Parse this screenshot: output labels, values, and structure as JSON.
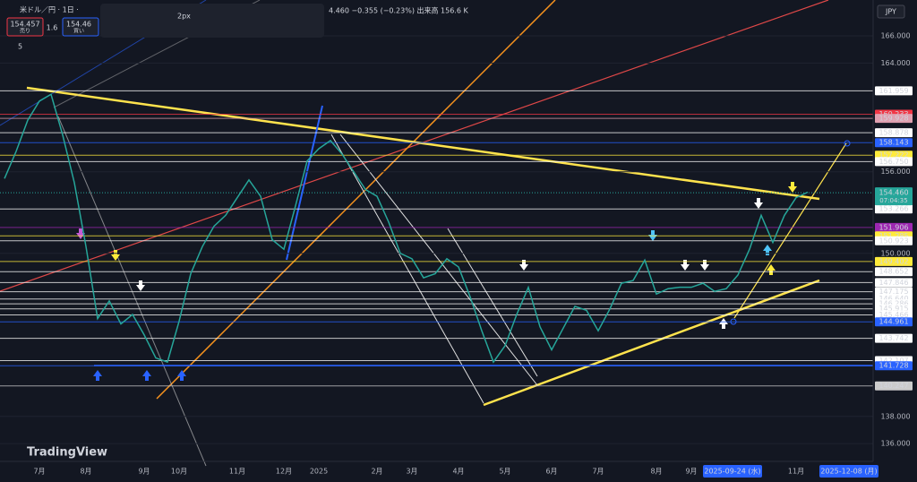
{
  "header": {
    "symbol": "米ドル／円 · 1日 ·",
    "quote": "4.460 −0.355 (−0.23%) 出来高 156.6 K",
    "sell_price": "154.457",
    "sell_label": "売り",
    "spread": "1.6",
    "buy_price": "154.46",
    "buy_label": "買い",
    "indicator": "5",
    "stroke_width": "2px",
    "currency": "JPY",
    "logo": "TradingView"
  },
  "chart_data": {
    "type": "line",
    "color": "#26a69a",
    "categories": [
      null,
      null,
      null,
      "7月",
      null,
      null,
      null,
      "8月",
      null,
      null,
      null,
      null,
      "9月",
      null,
      null,
      "10月",
      null,
      null,
      null,
      null,
      "11月",
      null,
      null,
      null,
      "12月",
      null,
      null,
      "2025",
      null,
      null,
      null,
      null,
      "2月",
      null,
      null,
      "3月",
      null,
      null,
      null,
      "4月",
      null,
      null,
      null,
      "5月",
      null,
      null,
      null,
      "6月",
      null,
      null,
      null,
      "7月",
      null,
      null,
      null,
      null,
      "8月",
      null,
      null,
      "9月",
      null,
      null,
      null,
      null,
      null,
      null,
      null,
      null,
      "11月",
      null
    ],
    "values": [
      155.5,
      157.5,
      159.8,
      161.2,
      161.7,
      158.7,
      155.2,
      150.5,
      145.2,
      146.5,
      144.8,
      145.5,
      144.0,
      142.3,
      142.0,
      145.0,
      148.5,
      150.5,
      152.0,
      152.8,
      154.1,
      155.4,
      154.2,
      151.0,
      150.3,
      153.5,
      156.8,
      157.7,
      158.3,
      157.3,
      156.0,
      154.7,
      154.2,
      152.3,
      150.0,
      149.6,
      148.2,
      148.5,
      149.6,
      149.0,
      146.8,
      144.3,
      142.0,
      143.2,
      145.5,
      147.5,
      144.6,
      142.9,
      144.5,
      146.1,
      145.8,
      144.3,
      145.9,
      147.8,
      148.0,
      149.5,
      147.0,
      147.4,
      147.5,
      147.5,
      147.8,
      147.2,
      147.4,
      148.4,
      150.3,
      152.8,
      150.8,
      152.8,
      154.1,
      154.5
    ],
    "ylim": [
      134.69,
      168.64
    ],
    "yticks": [
      {
        "value": 136,
        "label": "136.000"
      },
      {
        "value": 138,
        "label": "138.000"
      },
      {
        "value": 150,
        "label": "150.000"
      },
      {
        "value": 156,
        "label": "156.000"
      },
      {
        "value": 164,
        "label": "164.000"
      },
      {
        "value": 166,
        "label": "166.000"
      }
    ],
    "price_levels": [
      {
        "value": 161.959,
        "label": "161.959",
        "color": "#ffffff"
      },
      {
        "value": 160.233,
        "label": "160.233",
        "color": "#f23645"
      },
      {
        "value": 159.928,
        "label": "159.928",
        "color": "#e0a0b0"
      },
      {
        "value": 158.878,
        "label": "158.878",
        "color": "#ffffff"
      },
      {
        "value": 158.143,
        "label": "158.143",
        "color": "#2962ff"
      },
      {
        "value": 157.222,
        "label": "157.222",
        "color": "#ffeb3b"
      },
      {
        "value": 156.75,
        "label": "156.750",
        "color": "#ffffff"
      },
      {
        "value": 153.266,
        "label": "153.266",
        "color": "#ffffff"
      },
      {
        "value": 151.906,
        "label": "151.906",
        "color": "#9c27b0"
      },
      {
        "value": 151.285,
        "label": "151.285",
        "color": "#ffeb3b"
      },
      {
        "value": 150.923,
        "label": "150.923",
        "color": "#ffffff"
      },
      {
        "value": 149.402,
        "label": "149.402",
        "color": "#ffeb3b"
      },
      {
        "value": 148.652,
        "label": "148.652",
        "color": "#ffffff"
      },
      {
        "value": 147.846,
        "label": "147.846",
        "color": "#ffffff"
      },
      {
        "value": 147.175,
        "label": "147.175",
        "color": "#ffffff"
      },
      {
        "value": 146.64,
        "label": "146.640",
        "color": "#ffffff"
      },
      {
        "value": 146.286,
        "label": "146.286",
        "color": "#ffffff"
      },
      {
        "value": 145.915,
        "label": "145.915",
        "color": "#ffffff"
      },
      {
        "value": 145.466,
        "label": "145.466",
        "color": "#ffffff"
      },
      {
        "value": 144.961,
        "label": "144.961",
        "color": "#2962ff"
      },
      {
        "value": 143.742,
        "label": "143.742",
        "color": "#ffffff"
      },
      {
        "value": 142.107,
        "label": "142.107",
        "color": "#ffffff"
      },
      {
        "value": 141.728,
        "label": "141.728",
        "color": "#2962ff"
      },
      {
        "value": 140.247,
        "label": "140.247",
        "color": "#cccccc"
      }
    ],
    "last_price": {
      "value": 154.46,
      "label": "154.460",
      "countdown": "07:04:35"
    },
    "time_highlights": [
      "2025-09-24 (水)",
      "2025-12-08 (月)"
    ]
  }
}
